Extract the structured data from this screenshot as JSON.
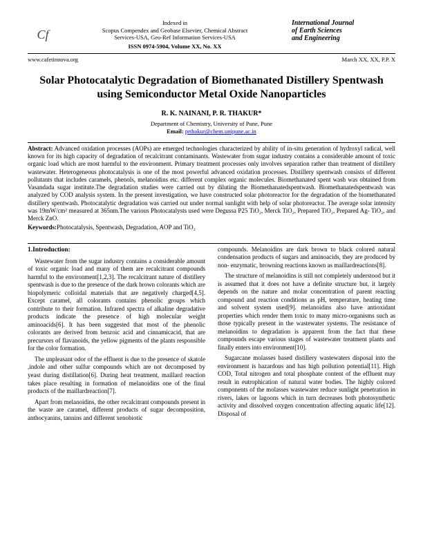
{
  "header": {
    "logo_text": "Cf",
    "indexed_in": "Indexed in",
    "index_line1": "Scopus Compendex and Geobase Elsevier, Chemical Abstract",
    "index_line2": "Services-USA, Geo-Ref Information Services-USA",
    "journal_line1": "International Journal",
    "journal_line2": "of Earth Sciences",
    "journal_line3": "and Engineering",
    "website": "www.cafetinnova.org",
    "issn": "ISSN 0974-5904, Volume XX, No. XX",
    "date": "March XX, XX, P.P. X"
  },
  "title": "Solar Photocatalytic Degradation of Biomethanated Distillery Spentwash using Semiconductor Metal Oxide Nanoparticles",
  "authors": "R. K. NAINANI, P. R. THAKUR*",
  "affiliation": "Department of Chemistry, University of Pune, Pune",
  "email_label": "Email:",
  "email": "prthakur@chem.unipune.ac.in",
  "abstract_label": "Abstract:",
  "abstract_text": " Advanced oxidation processes (AOPs) are emerged technologies characterized by ability of in-situ generation of hydroxyl radical, well known for its high capacity of degradation of recalcitrant contaminants. Wastewater from sugar industry contains a considerable amount of toxic organic load which are most harmful to the environment. Primary treatment processes only involves separation rather than treatment of distillery wastewater. Heterogeneous photocatalysis is one of the most powerful advanced oxidation processes. Distillery spentwash consists of different pollutants that includes caramels, phenols, melanoidins etc. different complex organic molecules. Biomethanated spent wash was obtained from Vasandada sugar institute.The degradation studies were carried out by diluting the Biomethanatedspentwash. Biomethanatedspentwash was analyzed by COD analysis system. In the present investigation, we have constructed solar photoreactor for the degradation of the biomethanated distillery spentwash. Photocatalytic degradation was carried out under normal sunlight with help of solar photoreactor. The average solar intensity was 19mW/cm² measured at 365nm.The various Photocatalysts used were Degussa P25 TiO₂, Merck TiO₂, Prepared TiO₂, Prepared Ag- TiO₂, and Merck ZnO.",
  "keywords_label": "Keywords:",
  "keywords_text": "Photocatalysis, Spentwash, Degradation, AOP and TiO₂",
  "section_head": "1.Introduction:",
  "col_left": {
    "p1": "Wastewater from the sugar industry contains a considerable amount of toxic organic load and many of them are recalcitrant compounds harmful to the environment[1,2,3]. The recalcitrant nature of distillery spentwash is due to the presence of the dark brown colorants which are biopolymeric colloidal materials that are negatively charged[4,5]. Except caramel, all colorants contains phenolic groups which contribute to their formation. Infrared spectra of alkaline degradative products indicate the presence of high molecular weight aminoacids[6]. It has been suggested that most of the phenolic colorants are derived from benzoic acid and cinnamicacid, that are precursors of flavanoids, the yellow pigments of the plants responsible for the color formation.",
    "p2": "The unpleasant odor of the effluent is due to the presence of skatole ,indole and other sulfur compounds which are not decomposed by yeast during distillation[6]. During heat treatment, maillard reaction takes place resulting in formation of melanoidins one of the final products of the maillardreaction[7].",
    "p3": "Apart from melanoidins, the other recalcitrant compounds present in the waste are caramel, different products of sugar decomposition, anthocyanins, tannins and different xenobiotic"
  },
  "col_right": {
    "p1": "compounds. Melanoidins are dark brown to black colored natural condensation products of sugars and aminoacids, they are produced by non- enzymatic, browning reactions known as maillardreactions[8].",
    "p2": "The structure of melanoidins is still not completely understood but it is assumed that it does not have a definite structure but, it largely depends on the nature and molar concentration of parent reacting compound and reaction conditions as pH, temperature, heating time and solvent system used[9]. melanoidins also have antioxidant properties which render them toxic to many micro-organisms such as those typically present in the wastewater systems. The resistance of melanoidins to degradation is apparent from the fact that these compounds escape various stages of wastewater treatment plants and finally enters into environment[10].",
    "p3": "Sugarcane molasses based distillery wastewaters disposal into the environment is hazardous and has high pollution potential[11]. High COD, Total nitrogen and total phosphate content of the effluent may result in eutrophication of natural water bodies. The highly colored components of the molasses wastewater reduce sunlight penetration in rivers, lakes or lagoons which in turn decreases both photosynthetic activity and dissolved oxygen concentration affecting aquatic life[12]. Disposal of"
  }
}
